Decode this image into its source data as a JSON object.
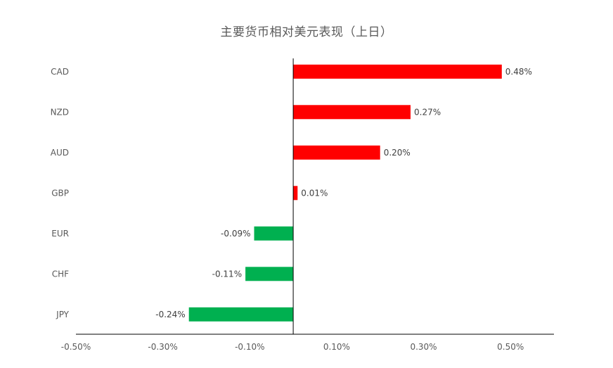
{
  "chart_data": {
    "type": "bar",
    "orientation": "horizontal",
    "title": "主要货币相对美元表现（上日）",
    "categories": [
      "CAD",
      "NZD",
      "AUD",
      "GBP",
      "EUR",
      "CHF",
      "JPY"
    ],
    "values": [
      0.48,
      0.27,
      0.2,
      0.01,
      -0.09,
      -0.11,
      -0.24
    ],
    "data_labels": [
      "0.48%",
      "0.27%",
      "0.20%",
      "0.01%",
      "-0.09%",
      "-0.11%",
      "-0.24%"
    ],
    "xlim": [
      -0.5,
      0.6
    ],
    "xticks": [
      -0.5,
      -0.3,
      -0.1,
      0.1,
      0.3,
      0.5
    ],
    "xtick_labels": [
      "-0.50%",
      "-0.30%",
      "-0.10%",
      "0.10%",
      "0.30%",
      "0.50%"
    ],
    "grid": false,
    "legend": "none",
    "colors": {
      "positive": "#ff0000",
      "negative": "#00b050",
      "axis": "#000000",
      "text": "#595959",
      "label": "#404040"
    }
  }
}
